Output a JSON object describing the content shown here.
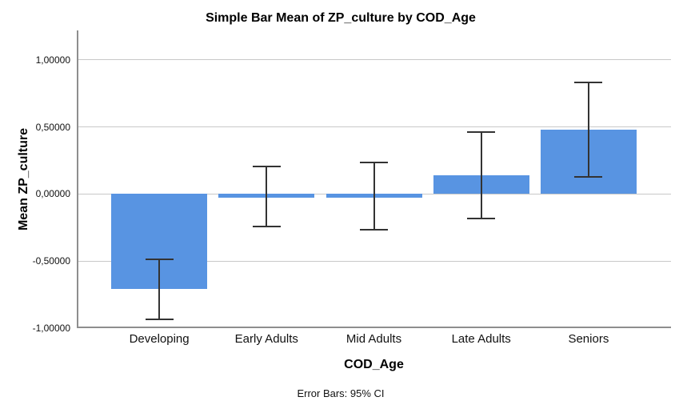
{
  "chart_data": {
    "type": "bar",
    "title": "Simple Bar Mean of ZP_culture by COD_Age",
    "xlabel": "COD_Age",
    "ylabel": "Mean ZP_culture",
    "footnote": "Error Bars: 95% CI",
    "categories": [
      "Developing",
      "Early Adults",
      "Mid Adults",
      "Late Adults",
      "Seniors"
    ],
    "series": [
      {
        "name": "Mean ZP_culture",
        "values": [
          -0.71,
          -0.03,
          -0.03,
          0.14,
          0.48
        ],
        "ci_low": [
          -0.94,
          -0.25,
          -0.27,
          -0.19,
          0.12
        ],
        "ci_high": [
          -0.48,
          0.21,
          0.24,
          0.47,
          0.84
        ]
      }
    ],
    "error_bar_type": "95% CI",
    "yticks": [
      {
        "value": 1.0,
        "label": "1,00000"
      },
      {
        "value": 0.5,
        "label": "0,50000"
      },
      {
        "value": 0.0,
        "label": "0,00000"
      },
      {
        "value": -0.5,
        "label": "-0,50000"
      },
      {
        "value": -1.0,
        "label": "-1,00000"
      }
    ],
    "ylim": [
      -1.0,
      1.22
    ],
    "grid": true,
    "legend_position": "none",
    "colors": {
      "bar_fill": "#5894E2",
      "gridline": "#C8C8C8",
      "axis_line": "#8E8E8E",
      "error_bar": "#333333",
      "text": "#000000",
      "background": "#FFFFFF"
    }
  }
}
